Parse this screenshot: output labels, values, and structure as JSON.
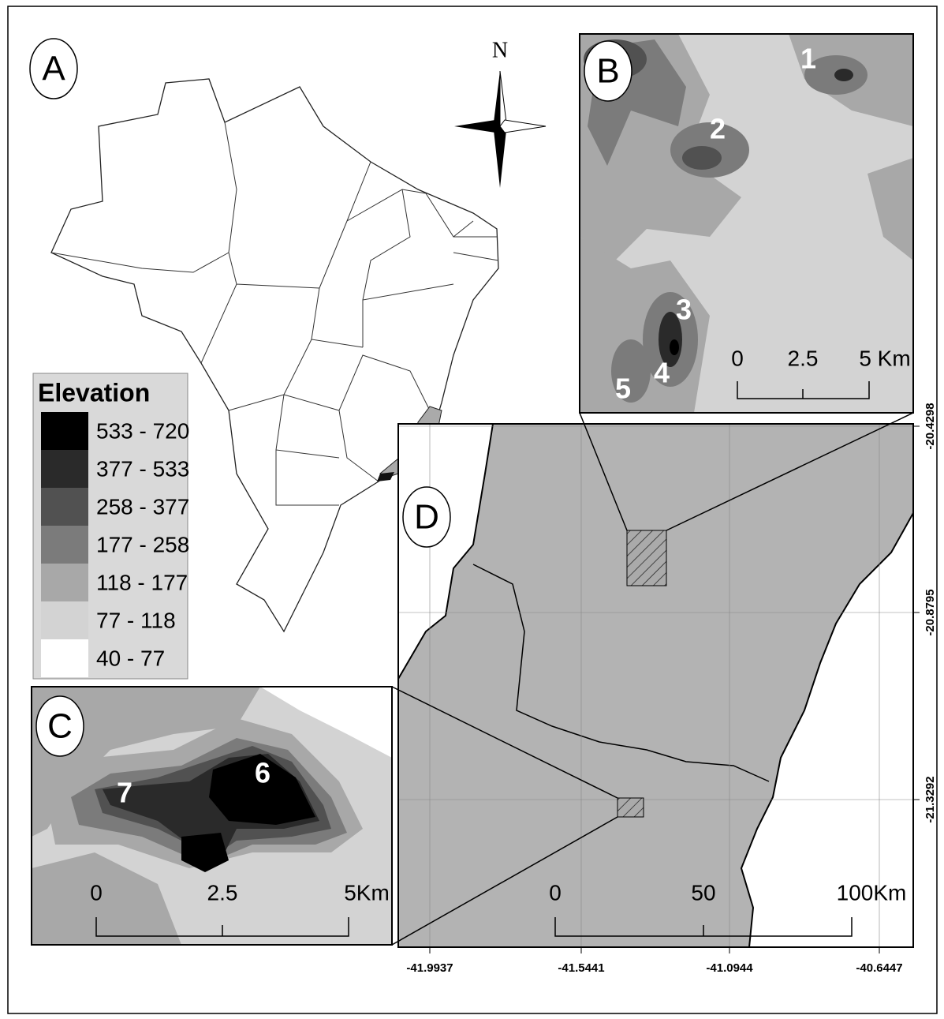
{
  "panel_labels": {
    "a": "A",
    "b": "B",
    "c": "C",
    "d": "D"
  },
  "compass": {
    "north": "N"
  },
  "legend": {
    "title": "Elevation",
    "classes": [
      {
        "label": "533 - 720",
        "color": "#000000"
      },
      {
        "label": "377 - 533",
        "color": "#2a2a2a"
      },
      {
        "label": "258 - 377",
        "color": "#515151"
      },
      {
        "label": "177 - 258",
        "color": "#7b7b7b"
      },
      {
        "label": "118 - 177",
        "color": "#a8a8a8"
      },
      {
        "label": "77 - 118",
        "color": "#d3d3d3"
      },
      {
        "label": "40 - 77",
        "color": "#ffffff"
      }
    ]
  },
  "inset_b": {
    "sites": [
      "1",
      "2",
      "3",
      "4",
      "5"
    ],
    "scale": [
      "0",
      "2.5",
      "5 Km"
    ]
  },
  "inset_c": {
    "sites": [
      "6",
      "7"
    ],
    "scale": [
      "0",
      "2.5",
      "5Km"
    ]
  },
  "map_d": {
    "scale": [
      "0",
      "50",
      "100Km"
    ],
    "longitudes": [
      "-41.9937",
      "-41.5441",
      "-41.0944",
      "-40.6447"
    ],
    "latitudes": [
      "-20.4298",
      "-20.8795",
      "-21.3292"
    ]
  }
}
